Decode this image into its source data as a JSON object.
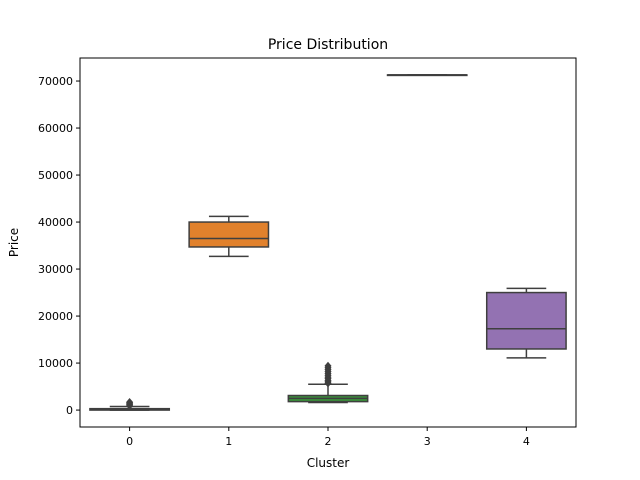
{
  "chart_data": {
    "type": "box",
    "title": "Price Distribution",
    "xlabel": "Cluster",
    "ylabel": "Price",
    "categories": [
      "0",
      "1",
      "2",
      "3",
      "4"
    ],
    "ylim": [
      -3600,
      74900
    ],
    "yticks": [
      0,
      10000,
      20000,
      30000,
      40000,
      50000,
      60000,
      70000
    ],
    "grid": false,
    "series": [
      {
        "category": "0",
        "color": "#3274a1",
        "whislo": 0,
        "q1": 0,
        "median": 150,
        "q3": 300,
        "whishi": 750,
        "fliers": [
          900,
          1100,
          1300,
          1500,
          1700
        ]
      },
      {
        "category": "1",
        "color": "#e1812c",
        "whislo": 32700,
        "q1": 34700,
        "median": 36500,
        "q3": 40000,
        "whishi": 41200,
        "fliers": []
      },
      {
        "category": "2",
        "color": "#3a923a",
        "whislo": 1600,
        "q1": 1800,
        "median": 2500,
        "q3": 3100,
        "whishi": 5500,
        "fliers": [
          5700,
          6000,
          6300,
          6700,
          7000,
          7400,
          7800,
          8200,
          8600,
          9000,
          9400
        ]
      },
      {
        "category": "3",
        "color": "#c03d3e",
        "whislo": 71300,
        "q1": 71300,
        "median": 71300,
        "q3": 71300,
        "whishi": 71300,
        "fliers": []
      },
      {
        "category": "4",
        "color": "#9372b2",
        "whislo": 11100,
        "q1": 13000,
        "median": 17300,
        "q3": 25000,
        "whishi": 25900,
        "fliers": []
      }
    ]
  }
}
